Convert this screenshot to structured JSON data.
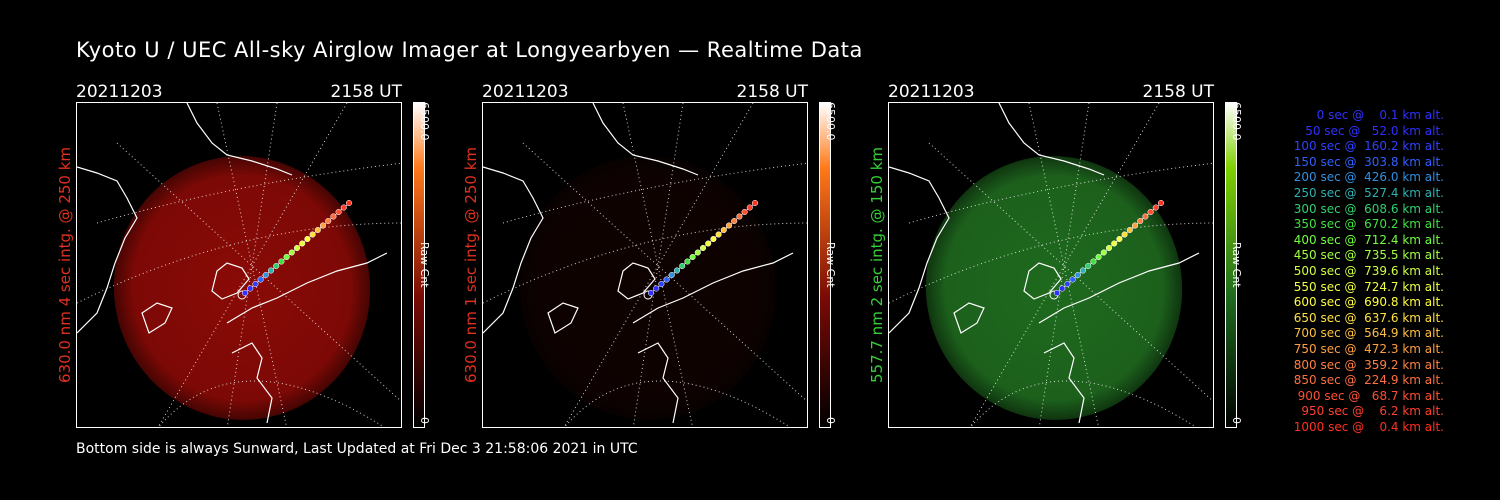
{
  "title": "Kyoto U / UEC All-sky Airglow Imager at Longyearbyen — Realtime Data",
  "footer": "Bottom side is always Sunward, Last Updated at Fri Dec  3 21:58:06 2021 in UTC",
  "colorbar": {
    "max": "6500.0",
    "unit": "Raw Cnt",
    "min": "0"
  },
  "panels": [
    {
      "date": "20211203",
      "time": "2158 UT",
      "ylabel": "630.0 nm 4 sec intg. @ 250 km",
      "label_color": "#e0301e",
      "glow_color": "#8a0a06",
      "bar_color": "#ff7a1a",
      "brightness": 1.0
    },
    {
      "date": "20211203",
      "time": "2158 UT",
      "ylabel": "630.0 nm 1 sec intg. @ 250 km",
      "label_color": "#e0301e",
      "glow_color": "#2a0503",
      "bar_color": "#ff7a1a",
      "brightness": 0.35
    },
    {
      "date": "20211203",
      "time": "2158 UT",
      "ylabel": "557.7 nm 2 sec intg. @ 150 km",
      "label_color": "#35d035",
      "glow_color": "#1f6a1f",
      "bar_color": "#7fd000",
      "brightness": 1.0
    }
  ],
  "legend": [
    {
      "text": "   0 sec @    0.1 km alt.",
      "color": "#3030ff"
    },
    {
      "text": "  50 sec @   52.0 km alt.",
      "color": "#3030ff"
    },
    {
      "text": " 100 sec @  160.2 km alt.",
      "color": "#3040ff"
    },
    {
      "text": " 150 sec @  303.8 km alt.",
      "color": "#3060ff"
    },
    {
      "text": " 200 sec @  426.0 km alt.",
      "color": "#3090e0"
    },
    {
      "text": " 250 sec @  527.4 km alt.",
      "color": "#30b0b0"
    },
    {
      "text": " 300 sec @  608.6 km alt.",
      "color": "#30d070"
    },
    {
      "text": " 350 sec @  670.2 km alt.",
      "color": "#40e040"
    },
    {
      "text": " 400 sec @  712.4 km alt.",
      "color": "#70ff40"
    },
    {
      "text": " 450 sec @  735.5 km alt.",
      "color": "#a0ff40"
    },
    {
      "text": " 500 sec @  739.6 km alt.",
      "color": "#d0ff40"
    },
    {
      "text": " 550 sec @  724.7 km alt.",
      "color": "#f0ff40"
    },
    {
      "text": " 600 sec @  690.8 km alt.",
      "color": "#ffff40"
    },
    {
      "text": " 650 sec @  637.6 km alt.",
      "color": "#ffe040"
    },
    {
      "text": " 700 sec @  564.9 km alt.",
      "color": "#ffc040"
    },
    {
      "text": " 750 sec @  472.3 km alt.",
      "color": "#ffa040"
    },
    {
      "text": " 800 sec @  359.2 km alt.",
      "color": "#ff8040"
    },
    {
      "text": " 850 sec @  224.9 km alt.",
      "color": "#ff7040"
    },
    {
      "text": " 900 sec @   68.7 km alt.",
      "color": "#ff5030"
    },
    {
      "text": " 950 sec @    6.2 km alt.",
      "color": "#ff4030"
    },
    {
      "text": "1000 sec @    0.4 km alt.",
      "color": "#ff3020"
    }
  ]
}
